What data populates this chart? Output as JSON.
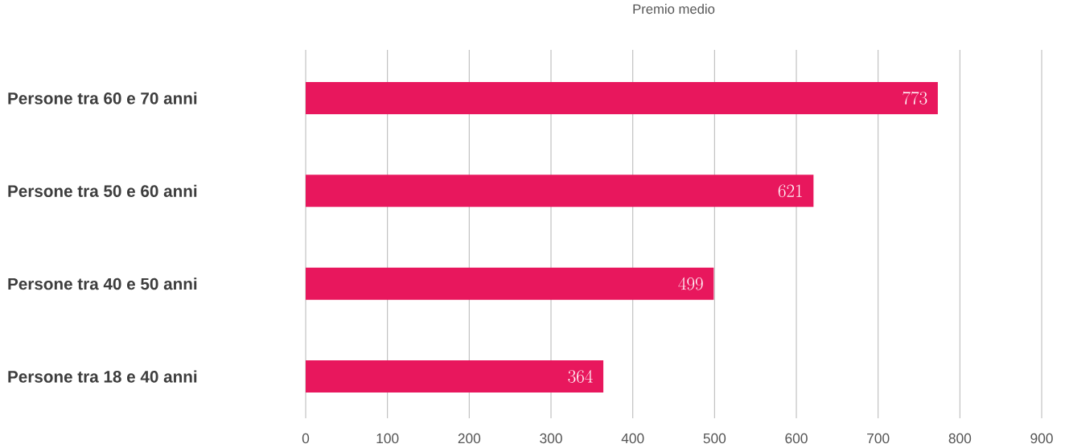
{
  "chart_data": {
    "type": "bar",
    "orientation": "horizontal",
    "title": "Premio medio",
    "categories": [
      "Persone tra 60 e 70 anni",
      "Persone tra 50 e 60 anni",
      "Persone tra 40 e 50 anni",
      "Persone tra 18 e 40 anni"
    ],
    "values": [
      773,
      621,
      499,
      364
    ],
    "color": "#e8175d",
    "data_labels": true,
    "xlim": [
      0,
      900
    ],
    "xticks": [
      0,
      100,
      200,
      300,
      400,
      500,
      600,
      700,
      800,
      900
    ],
    "grid": "x"
  }
}
